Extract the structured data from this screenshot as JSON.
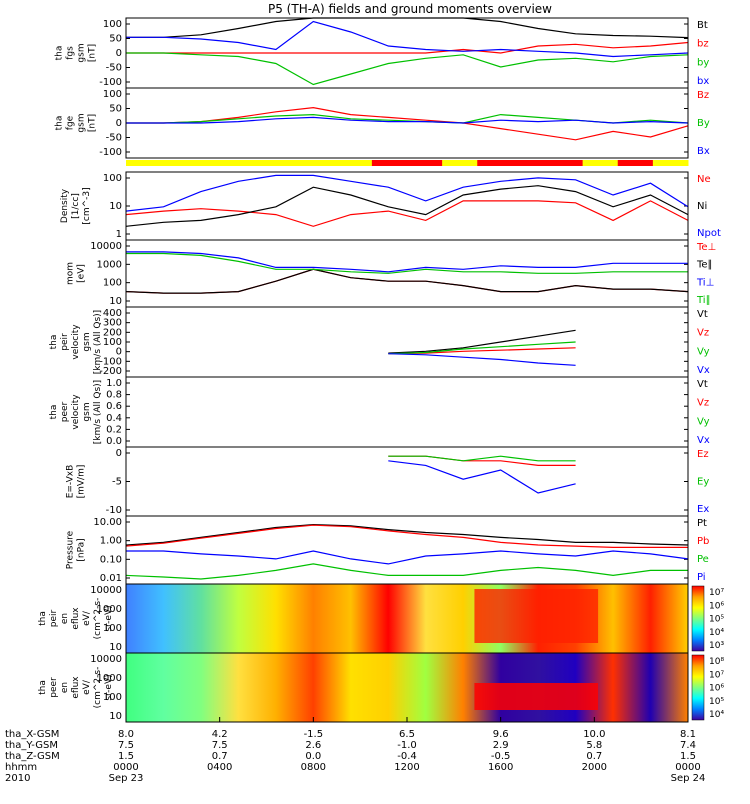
{
  "title": "P5 (TH-A) fields and ground moments overview",
  "chart_data": [
    {
      "type": "line",
      "ylabel": [
        "tha",
        "fgs",
        "gsm",
        "[nT]"
      ],
      "ylim": [
        -100,
        100
      ],
      "yticks": [
        "100",
        "50",
        "0",
        "-50",
        "-100"
      ],
      "series": [
        {
          "name": "Bt",
          "color": "#000000",
          "values": [
            45,
            45,
            52,
            70,
            90,
            100,
            100,
            100,
            100,
            100,
            90,
            70,
            55,
            50,
            48,
            44
          ]
        },
        {
          "name": "bz",
          "color": "#ff0000",
          "values": [
            0,
            0,
            0,
            0,
            0,
            0,
            0,
            0,
            0,
            10,
            0,
            20,
            25,
            15,
            20,
            30
          ]
        },
        {
          "name": "by",
          "color": "#00c000",
          "values": [
            0,
            0,
            -5,
            -10,
            -30,
            -90,
            -60,
            -30,
            -15,
            -5,
            -40,
            -20,
            -15,
            -25,
            -10,
            -5
          ]
        },
        {
          "name": "bx",
          "color": "#0000ff",
          "values": [
            45,
            45,
            40,
            30,
            10,
            90,
            60,
            20,
            10,
            5,
            10,
            5,
            0,
            -10,
            -5,
            0
          ]
        }
      ]
    },
    {
      "type": "line",
      "ylabel": [
        "tha",
        "fge",
        "gsm",
        "[nT]"
      ],
      "ylim": [
        -125,
        125
      ],
      "yticks": [
        "100",
        "50",
        "0",
        "-50",
        "-100"
      ],
      "series": [
        {
          "name": "Bz",
          "color": "#ff0000",
          "values": [
            0,
            0,
            5,
            20,
            40,
            55,
            30,
            20,
            10,
            0,
            -20,
            -40,
            -60,
            -30,
            -50,
            -10
          ]
        },
        {
          "name": "By",
          "color": "#00c000",
          "values": [
            0,
            0,
            5,
            15,
            25,
            30,
            15,
            10,
            5,
            0,
            30,
            20,
            10,
            0,
            10,
            0
          ]
        },
        {
          "name": "Bx",
          "color": "#0000ff",
          "values": [
            0,
            0,
            0,
            5,
            15,
            20,
            10,
            5,
            5,
            0,
            10,
            5,
            10,
            0,
            5,
            0
          ]
        }
      ]
    },
    {
      "type": "line",
      "ylabel": [
        "Density",
        "[1/cc]",
        "[cm^-3]"
      ],
      "ylim": [
        0.1,
        300
      ],
      "log": true,
      "yticks": [
        "100",
        "10",
        "1"
      ],
      "series": [
        {
          "name": "Ne",
          "color": "#ff0000",
          "values": [
            2,
            3,
            4,
            3,
            2,
            0.5,
            2,
            3,
            1,
            10,
            10,
            10,
            8,
            1,
            10,
            1
          ]
        },
        {
          "name": "Ni",
          "color": "#000000",
          "values": [
            0.5,
            0.8,
            1,
            2,
            5,
            50,
            20,
            5,
            2,
            20,
            40,
            60,
            30,
            5,
            20,
            2
          ]
        },
        {
          "name": "Npot",
          "color": "#0000ff",
          "values": [
            3,
            5,
            30,
            100,
            200,
            200,
            100,
            50,
            10,
            50,
            100,
            150,
            120,
            20,
            80,
            5
          ]
        }
      ]
    },
    {
      "type": "line",
      "ylabel": [
        "mom",
        "[eV]"
      ],
      "ylim": [
        5,
        12000
      ],
      "log": true,
      "yticks": [
        "10000",
        "1000",
        "100",
        "10"
      ],
      "series": [
        {
          "name": "Te⊥",
          "color": "#ff0000",
          "values": [
            30,
            25,
            25,
            30,
            100,
            400,
            150,
            100,
            100,
            60,
            30,
            30,
            60,
            40,
            40,
            30
          ]
        },
        {
          "name": "Te∥",
          "color": "#000000",
          "values": [
            30,
            25,
            25,
            30,
            100,
            400,
            150,
            100,
            100,
            60,
            30,
            30,
            60,
            40,
            40,
            30
          ]
        },
        {
          "name": "Ti⊥",
          "color": "#0000ff",
          "values": [
            3000,
            3000,
            2500,
            1500,
            500,
            500,
            400,
            300,
            500,
            400,
            600,
            500,
            500,
            800,
            800,
            800
          ]
        },
        {
          "name": "Ti∥",
          "color": "#00c000",
          "values": [
            2500,
            2500,
            2000,
            1000,
            400,
            400,
            300,
            250,
            400,
            300,
            300,
            250,
            250,
            300,
            300,
            300
          ]
        }
      ]
    },
    {
      "type": "line",
      "ylabel": [
        "tha",
        "peir",
        "velocity",
        "gsm",
        "[km/s (All Qs)]"
      ],
      "ylim": [
        -200,
        400
      ],
      "yticks": [
        "400",
        "300",
        "200",
        "100",
        "0",
        "-100",
        "-200"
      ],
      "series": [
        {
          "name": "Vt",
          "color": "#000000",
          "values": [
            null,
            null,
            null,
            null,
            null,
            null,
            null,
            5,
            20,
            50,
            100,
            150,
            200,
            null,
            150,
            null
          ]
        },
        {
          "name": "Vz",
          "color": "#ff0000",
          "values": [
            null,
            null,
            null,
            null,
            null,
            null,
            null,
            0,
            5,
            20,
            30,
            40,
            50,
            null,
            40,
            null
          ]
        },
        {
          "name": "Vy",
          "color": "#00c000",
          "values": [
            null,
            null,
            null,
            null,
            null,
            null,
            null,
            0,
            10,
            40,
            60,
            80,
            100,
            null,
            80,
            null
          ]
        },
        {
          "name": "Vx",
          "color": "#0000ff",
          "values": [
            null,
            null,
            null,
            null,
            null,
            null,
            null,
            0,
            -10,
            -30,
            -50,
            -80,
            -100,
            null,
            -80,
            null
          ]
        }
      ]
    },
    {
      "type": "line",
      "ylabel": [
        "tha",
        "peer",
        "velocity",
        "gsm",
        "[km/s (All Qs)]"
      ],
      "ylim": [
        0,
        1
      ],
      "yticks": [
        "1.0",
        "0.8",
        "0.6",
        "0.4",
        "0.2",
        "0.0"
      ],
      "series": [
        {
          "name": "Vt",
          "color": "#000000",
          "values": []
        },
        {
          "name": "Vz",
          "color": "#ff0000",
          "values": []
        },
        {
          "name": "Vy",
          "color": "#00c000",
          "values": []
        },
        {
          "name": "Vx",
          "color": "#0000ff",
          "values": []
        }
      ]
    },
    {
      "type": "line",
      "ylabel": [
        "E=-VxB",
        "[mV/m]"
      ],
      "ylim": [
        -13,
        2
      ],
      "yticks": [
        "0",
        "-5",
        "-10"
      ],
      "series": [
        {
          "name": "Ez",
          "color": "#ff0000",
          "values": [
            null,
            null,
            null,
            null,
            null,
            null,
            null,
            0,
            0,
            -1,
            -1,
            -2,
            -2,
            null,
            -2,
            null
          ]
        },
        {
          "name": "Ey",
          "color": "#00c000",
          "values": [
            null,
            null,
            null,
            null,
            null,
            null,
            null,
            0,
            0,
            -1,
            0,
            -1,
            -1,
            null,
            -1,
            null
          ]
        },
        {
          "name": "Ex",
          "color": "#0000ff",
          "values": [
            null,
            null,
            null,
            null,
            null,
            null,
            null,
            -1,
            -2,
            -5,
            -3,
            -8,
            -6,
            null,
            -8,
            null
          ]
        }
      ]
    },
    {
      "type": "line",
      "ylabel": [
        "Pressure",
        "[nPa]"
      ],
      "ylim": [
        0.003,
        40
      ],
      "log": true,
      "yticks": [
        "10.00",
        "1.00",
        "0.10",
        "0.01"
      ],
      "series": [
        {
          "name": "Pt",
          "color": "#000000",
          "values": [
            0.7,
            1,
            2,
            4,
            8,
            12,
            10,
            6,
            4,
            3,
            2,
            1.5,
            1,
            1,
            0.8,
            0.7
          ]
        },
        {
          "name": "Pb",
          "color": "#ff0000",
          "values": [
            0.6,
            0.9,
            1.8,
            3.5,
            7,
            11,
            9,
            5,
            3,
            2,
            1,
            0.7,
            0.6,
            0.5,
            0.5,
            0.5
          ]
        },
        {
          "name": "Pe",
          "color": "#00c000",
          "values": [
            0.01,
            0.008,
            0.006,
            0.01,
            0.02,
            0.05,
            0.02,
            0.01,
            0.01,
            0.01,
            0.02,
            0.03,
            0.02,
            0.01,
            0.02,
            0.02
          ]
        },
        {
          "name": "Pi",
          "color": "#0000ff",
          "values": [
            0.3,
            0.3,
            0.2,
            0.15,
            0.1,
            0.3,
            0.1,
            0.05,
            0.15,
            0.2,
            0.3,
            0.2,
            0.15,
            0.3,
            0.2,
            0.1
          ]
        }
      ]
    },
    {
      "type": "heatmap",
      "ylabel": [
        "tha",
        "peir",
        "en",
        "eflux",
        "eV/",
        "(cm^2-s-",
        "sr-eV)"
      ],
      "ylim": [
        7,
        20000
      ],
      "log": true,
      "yticks": [
        "10000",
        "1000",
        "100",
        "10"
      ],
      "colorbar": {
        "labels": [
          "10⁷",
          "10⁶",
          "10⁵",
          "10⁴",
          "10³"
        ]
      }
    },
    {
      "type": "heatmap",
      "ylabel": [
        "tha",
        "peer",
        "en",
        "eflux",
        "eV/",
        "(cm^2-s-",
        "sr-eV)"
      ],
      "ylim": [
        7,
        20000
      ],
      "log": true,
      "yticks": [
        "10000",
        "1000",
        "100",
        "10"
      ],
      "colorbar": {
        "labels": [
          "10⁸",
          "10⁷",
          "10⁶",
          "10⁵",
          "10⁴"
        ]
      }
    }
  ],
  "x_axis": {
    "rows": [
      {
        "label": "tha_X-GSM",
        "values": [
          "8.0",
          "4.2",
          "-1.5",
          "6.5",
          "9.6",
          "10.0",
          "8.1"
        ]
      },
      {
        "label": "tha_Y-GSM",
        "values": [
          "7.5",
          "7.5",
          "2.6",
          "-1.0",
          "2.9",
          "5.8",
          "7.4"
        ]
      },
      {
        "label": "tha_Z-GSM",
        "values": [
          "1.5",
          "0.7",
          "0.0",
          "-0.4",
          "-0.5",
          "0.7",
          "1.5"
        ]
      },
      {
        "label": "hhmm",
        "values": [
          "0000",
          "0400",
          "0800",
          "1200",
          "1600",
          "2000",
          "0000"
        ]
      },
      {
        "label": "2010",
        "values": [
          "Sep 23",
          "",
          "",
          "",
          "",
          "",
          "Sep 24"
        ]
      }
    ]
  },
  "bar_track": {
    "segments": [
      "yellow",
      "yellow",
      "yellow",
      "yellow",
      "yellow",
      "yellow",
      "yellow",
      "red",
      "red",
      "yellow",
      "red",
      "red",
      "red",
      "yellow",
      "red",
      "yellow"
    ]
  }
}
